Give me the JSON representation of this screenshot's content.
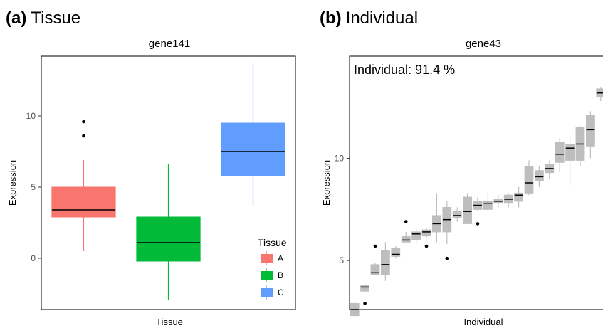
{
  "chart_data": [
    {
      "panel_letter": "(a)",
      "panel_name": "Tissue",
      "type": "boxplot",
      "title": "gene141",
      "xlabel": "Tissue",
      "ylabel": "Expression",
      "ylim": [
        -3.6,
        14.2
      ],
      "yticks": [
        0,
        5,
        10
      ],
      "grid": false,
      "legend": {
        "title": "Tissue",
        "placement": "bottom-right",
        "items": [
          {
            "label": "A",
            "color": "#F8766D"
          },
          {
            "label": "B",
            "color": "#00BA38"
          },
          {
            "label": "C",
            "color": "#619CFF"
          }
        ]
      },
      "series": [
        {
          "name": "A",
          "color": "#F8766D",
          "q1": 2.9,
          "median": 3.4,
          "q3": 5.0,
          "whisker_low": 0.5,
          "whisker_high": 6.9,
          "outliers": [
            8.6,
            9.6
          ]
        },
        {
          "name": "B",
          "color": "#00BA38",
          "q1": -0.2,
          "median": 1.1,
          "q3": 2.9,
          "whisker_low": -2.9,
          "whisker_high": 6.6,
          "outliers": []
        },
        {
          "name": "C",
          "color": "#619CFF",
          "q1": 5.8,
          "median": 7.5,
          "q3": 9.5,
          "whisker_low": 3.7,
          "whisker_high": 13.7,
          "outliers": []
        }
      ]
    },
    {
      "panel_letter": "(b)",
      "panel_name": "Individual",
      "type": "boxplot",
      "title": "gene43",
      "annotation": "Individual: 91.4 %",
      "xlabel": "Individual",
      "ylabel": "Expression",
      "ylim": [
        2.6,
        15.0
      ],
      "yticks": [
        5,
        10
      ],
      "grid": false,
      "box_color": "#BEBEBE",
      "series": [
        {
          "q1": 2.3,
          "median": 2.6,
          "q3": 2.9,
          "whisker_low": 2.3,
          "whisker_high": 2.9,
          "outliers": []
        },
        {
          "q1": 3.5,
          "median": 3.7,
          "q3": 3.8,
          "whisker_low": 3.4,
          "whisker_high": 3.9,
          "outliers": [
            2.9
          ]
        },
        {
          "q1": 4.3,
          "median": 4.4,
          "q3": 4.8,
          "whisker_low": 4.3,
          "whisker_high": 4.9,
          "outliers": [
            5.7
          ]
        },
        {
          "q1": 4.3,
          "median": 4.8,
          "q3": 5.5,
          "whisker_low": 4.0,
          "whisker_high": 5.9,
          "outliers": []
        },
        {
          "q1": 5.2,
          "median": 5.3,
          "q3": 5.6,
          "whisker_low": 5.1,
          "whisker_high": 5.7,
          "outliers": []
        },
        {
          "q1": 5.9,
          "median": 6.0,
          "q3": 6.2,
          "whisker_low": 5.9,
          "whisker_high": 6.4,
          "outliers": [
            6.9
          ]
        },
        {
          "q1": 6.0,
          "median": 6.3,
          "q3": 6.4,
          "whisker_low": 5.8,
          "whisker_high": 6.6,
          "outliers": []
        },
        {
          "q1": 6.2,
          "median": 6.4,
          "q3": 6.5,
          "whisker_low": 6.1,
          "whisker_high": 6.6,
          "outliers": [
            5.7
          ]
        },
        {
          "q1": 6.4,
          "median": 6.8,
          "q3": 7.2,
          "whisker_low": 5.9,
          "whisker_high": 8.3,
          "outliers": []
        },
        {
          "q1": 6.4,
          "median": 7.0,
          "q3": 7.6,
          "whisker_low": 5.8,
          "whisker_high": 7.9,
          "outliers": [
            5.1
          ]
        },
        {
          "q1": 7.1,
          "median": 7.2,
          "q3": 7.4,
          "whisker_low": 6.9,
          "whisker_high": 7.6,
          "outliers": []
        },
        {
          "q1": 6.8,
          "median": 7.4,
          "q3": 8.1,
          "whisker_low": 6.8,
          "whisker_high": 8.3,
          "outliers": []
        },
        {
          "q1": 7.5,
          "median": 7.7,
          "q3": 7.9,
          "whisker_low": 7.4,
          "whisker_high": 8.1,
          "outliers": [
            6.8
          ]
        },
        {
          "q1": 7.5,
          "median": 7.8,
          "q3": 7.9,
          "whisker_low": 7.5,
          "whisker_high": 8.3,
          "outliers": []
        },
        {
          "q1": 7.8,
          "median": 7.9,
          "q3": 8.0,
          "whisker_low": 7.6,
          "whisker_high": 8.2,
          "outliers": []
        },
        {
          "q1": 7.8,
          "median": 8.0,
          "q3": 8.2,
          "whisker_low": 7.6,
          "whisker_high": 8.3,
          "outliers": []
        },
        {
          "q1": 7.9,
          "median": 8.2,
          "q3": 8.3,
          "whisker_low": 7.6,
          "whisker_high": 8.6,
          "outliers": []
        },
        {
          "q1": 8.3,
          "median": 8.8,
          "q3": 9.6,
          "whisker_low": 8.2,
          "whisker_high": 9.9,
          "outliers": []
        },
        {
          "q1": 8.9,
          "median": 9.1,
          "q3": 9.4,
          "whisker_low": 8.6,
          "whisker_high": 9.6,
          "outliers": []
        },
        {
          "q1": 9.3,
          "median": 9.5,
          "q3": 9.7,
          "whisker_low": 9.0,
          "whisker_high": 9.9,
          "outliers": []
        },
        {
          "q1": 9.8,
          "median": 10.2,
          "q3": 10.8,
          "whisker_low": 9.3,
          "whisker_high": 11.0,
          "outliers": []
        },
        {
          "q1": 9.9,
          "median": 10.5,
          "q3": 10.7,
          "whisker_low": 8.7,
          "whisker_high": 11.1,
          "outliers": []
        },
        {
          "q1": 9.9,
          "median": 10.7,
          "q3": 11.5,
          "whisker_low": 9.6,
          "whisker_high": 11.6,
          "outliers": []
        },
        {
          "q1": 10.6,
          "median": 11.4,
          "q3": 12.1,
          "whisker_low": 10.0,
          "whisker_high": 12.3,
          "outliers": []
        },
        {
          "q1": 13.0,
          "median": 13.2,
          "q3": 13.4,
          "whisker_low": 12.8,
          "whisker_high": 13.5,
          "outliers": []
        }
      ]
    }
  ]
}
